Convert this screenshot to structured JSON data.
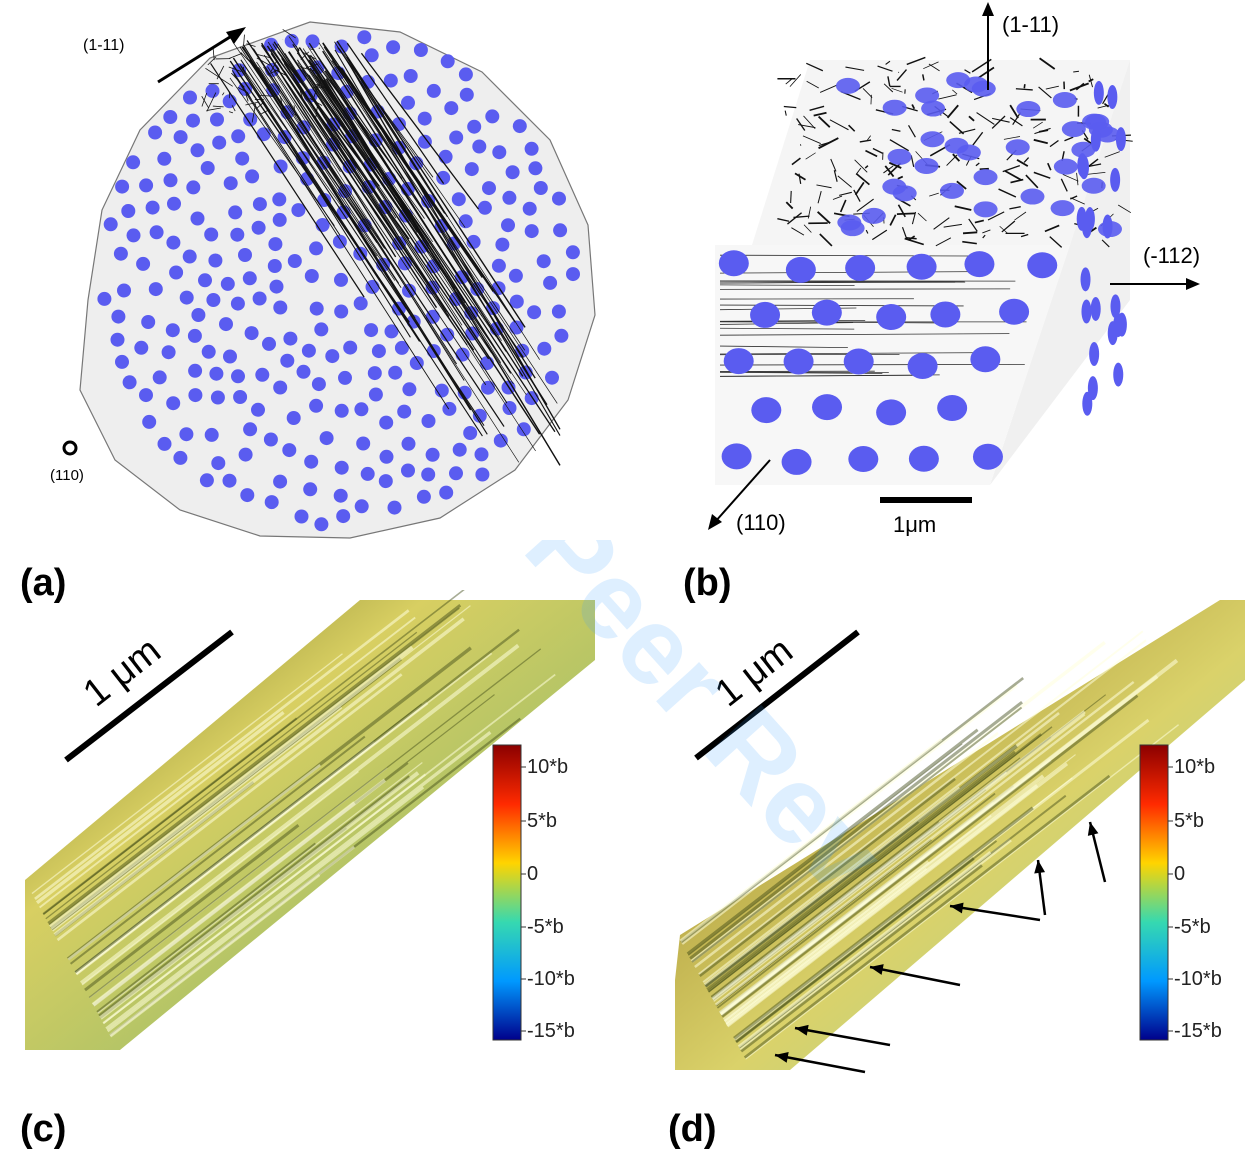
{
  "panels": {
    "a": {
      "label": "(a)",
      "dir_top": "(1-11)",
      "dir_bottom": "(110)"
    },
    "b": {
      "label": "(b)",
      "dir_top": "(1-11)",
      "dir_right": "(-112)",
      "dir_bottom": "(110)",
      "scale": "1μm"
    },
    "c": {
      "label": "(c)",
      "scale": "1 μm"
    },
    "d": {
      "label": "(d)",
      "scale": "1 μm"
    }
  },
  "colorbar": {
    "ticks": [
      "10*b",
      "5*b",
      "0",
      "-5*b",
      "-10*b",
      "-15*b"
    ],
    "colors": [
      "#8b0000",
      "#ff2a00",
      "#ffd400",
      "#36d9b0",
      "#0099ff",
      "#00008b"
    ]
  },
  "colors": {
    "precipitate": "#5a5cf0",
    "surface_light": "#e6d770",
    "surface_dark": "#6b6a1e",
    "surface_green": "#9fd49a"
  }
}
